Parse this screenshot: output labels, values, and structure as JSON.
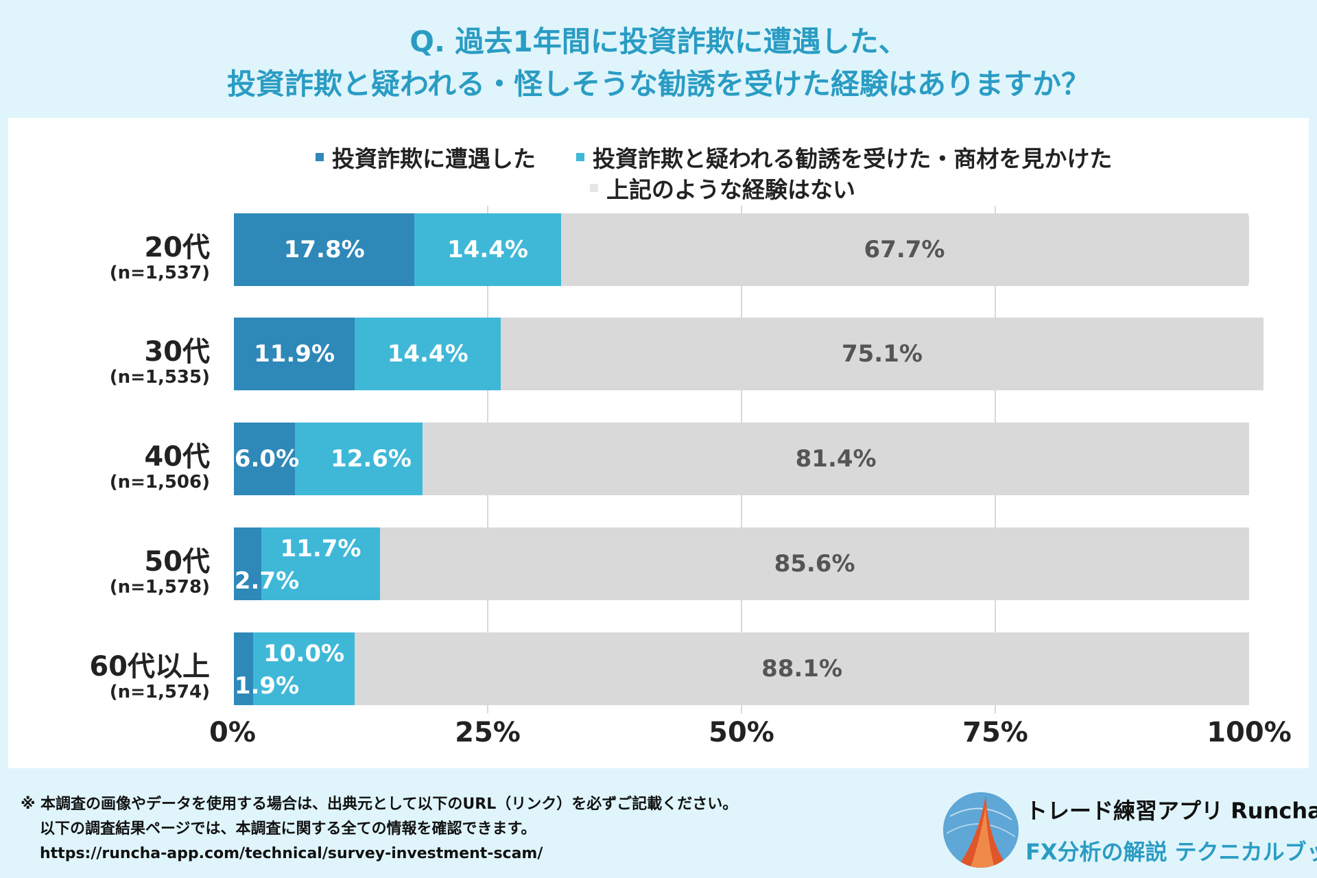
{
  "header": {
    "title_line1": "Q. 過去1年間に投資詐欺に遭遇した、",
    "title_line2": "投資詐欺と疑われる・怪しそうな勧誘を受けた経験はありますか？"
  },
  "chart_data": {
    "type": "bar",
    "orientation": "horizontal",
    "stacked": true,
    "categories": [
      "20代",
      "30代",
      "40代",
      "50代",
      "60代以上"
    ],
    "sample_sizes": [
      "(n=1,537)",
      "(n=1,535)",
      "(n=1,506)",
      "(n=1,578)",
      "(n=1,574)"
    ],
    "series": [
      {
        "name": "投資詐欺に遭遇した",
        "values": [
          17.8,
          11.9,
          6.0,
          2.7,
          1.9
        ],
        "labels": [
          "17.8%",
          "11.9%",
          "6.0%",
          "2.7%",
          "1.9%"
        ]
      },
      {
        "name": "投資詐欺と疑われる勧誘を受けた・商材を見かけた",
        "values": [
          14.4,
          14.4,
          12.6,
          11.7,
          10.0
        ],
        "labels": [
          "14.4%",
          "14.4%",
          "12.6%",
          "11.7%",
          "10.0%"
        ]
      },
      {
        "name": "上記のような経験はない",
        "values": [
          67.7,
          75.1,
          81.4,
          85.6,
          88.1
        ],
        "labels": [
          "67.7%",
          "75.1%",
          "81.4%",
          "85.6%",
          "88.1%"
        ]
      }
    ],
    "colors": [
      "#2e88b8",
      "#3fb8d8",
      "#d9d9d9"
    ],
    "label_colors": [
      "#ffffff",
      "#ffffff",
      "#555555"
    ],
    "xlim": [
      0,
      100
    ],
    "xticks": [
      "0%",
      "25%",
      "50%",
      "75%",
      "100%"
    ],
    "legend_position": "top"
  },
  "footer": {
    "line1": "※ 本調査の画像やデータを使用する場合は、出典元として以下のURL（リンク）を必ずご記載ください。",
    "line2": "以下の調査結果ページでは、本調査に関する全ての情報を確認できます。",
    "line3": "https://runcha-app.com/technical/survey-investment-scam/"
  },
  "brand": {
    "name": "トレード練習アプリ  Runcha",
    "tagline": "FX分析の解説  テクニカルブック"
  }
}
